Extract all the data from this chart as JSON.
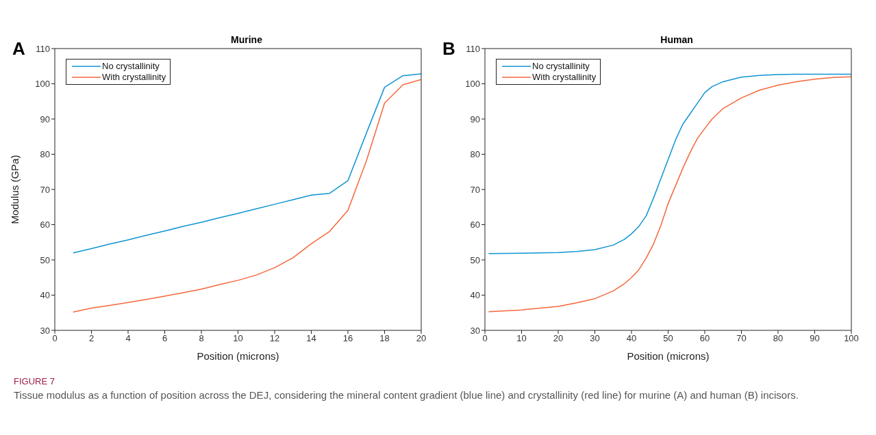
{
  "chart_data": [
    {
      "type": "line",
      "title": "Murine",
      "xlabel": "Position (microns)",
      "ylabel": "Modulus (GPa)",
      "xlim": [
        0,
        20
      ],
      "xticks": [
        0,
        2,
        4,
        6,
        8,
        10,
        12,
        14,
        16,
        18,
        20
      ],
      "ylim": [
        30,
        110
      ],
      "yticks": [
        30,
        40,
        50,
        60,
        70,
        80,
        90,
        100,
        110
      ],
      "grid": false,
      "legend": "top left",
      "marker": "none",
      "line_style": "solid",
      "annotations": [
        "A"
      ],
      "x": [
        1,
        2,
        3,
        4,
        5,
        6,
        7,
        8,
        9,
        10,
        11,
        12,
        13,
        14,
        15,
        16,
        17,
        18,
        19,
        20
      ],
      "series": [
        {
          "name": "No crystallinity",
          "color": "#0f94d2",
          "values": [
            52,
            53.2,
            54.5,
            55.7,
            57,
            58.2,
            59.5,
            60.7,
            62,
            63.2,
            64.5,
            65.8,
            67.1,
            68.4,
            68.9,
            72.5,
            85.9,
            99,
            102.3,
            102.8
          ]
        },
        {
          "name": "With crystallinity",
          "color": "#f5673a",
          "values": [
            35.2,
            36.3,
            37.1,
            37.9,
            38.8,
            39.7,
            40.7,
            41.7,
            43,
            44.2,
            45.7,
            47.8,
            50.6,
            54.6,
            58.1,
            64.1,
            78,
            94.5,
            99.7,
            101.2
          ]
        }
      ]
    },
    {
      "type": "line",
      "title": "Human",
      "xlabel": "Position (microns)",
      "xlim": [
        0,
        100
      ],
      "xticks": [
        0,
        10,
        20,
        30,
        40,
        50,
        60,
        70,
        80,
        90,
        100
      ],
      "ylim": [
        30,
        110
      ],
      "yticks": [
        30,
        40,
        50,
        60,
        70,
        80,
        90,
        100,
        110
      ],
      "grid": false,
      "legend": "top left",
      "marker": "none",
      "line_style": "solid",
      "annotations": [
        "B",
        "FIGURE 7",
        "Tissue modulus as a function of position across the DEJ, considering the mineral content gradient (blue line) and crystallinity (red line) for murine (A) and human (B) incisors."
      ],
      "x": [
        1,
        10,
        20,
        25,
        30,
        35,
        38,
        40,
        42,
        44,
        46,
        48,
        50,
        52,
        54,
        56,
        58,
        60,
        62,
        65,
        70,
        75,
        80,
        85,
        90,
        95,
        100
      ],
      "series": [
        {
          "name": "No crystallinity",
          "color": "#0f94d2",
          "values": [
            51.8,
            51.9,
            52.1,
            52.4,
            52.9,
            54.2,
            55.8,
            57.4,
            59.5,
            62.5,
            67.5,
            73,
            78.5,
            84,
            88.5,
            91.5,
            94.5,
            97.5,
            99.2,
            100.6,
            101.9,
            102.4,
            102.6,
            102.7,
            102.7,
            102.7,
            102.7
          ]
        },
        {
          "name": "With crystallinity",
          "color": "#f5673a",
          "values": [
            35.3,
            35.8,
            36.8,
            37.8,
            39,
            41.2,
            43.2,
            45,
            47.2,
            50.5,
            54.5,
            59.7,
            66,
            71,
            76,
            80.5,
            84.5,
            87.3,
            90,
            93,
            96,
            98.2,
            99.6,
            100.6,
            101.3,
            101.8,
            102
          ]
        }
      ]
    }
  ]
}
